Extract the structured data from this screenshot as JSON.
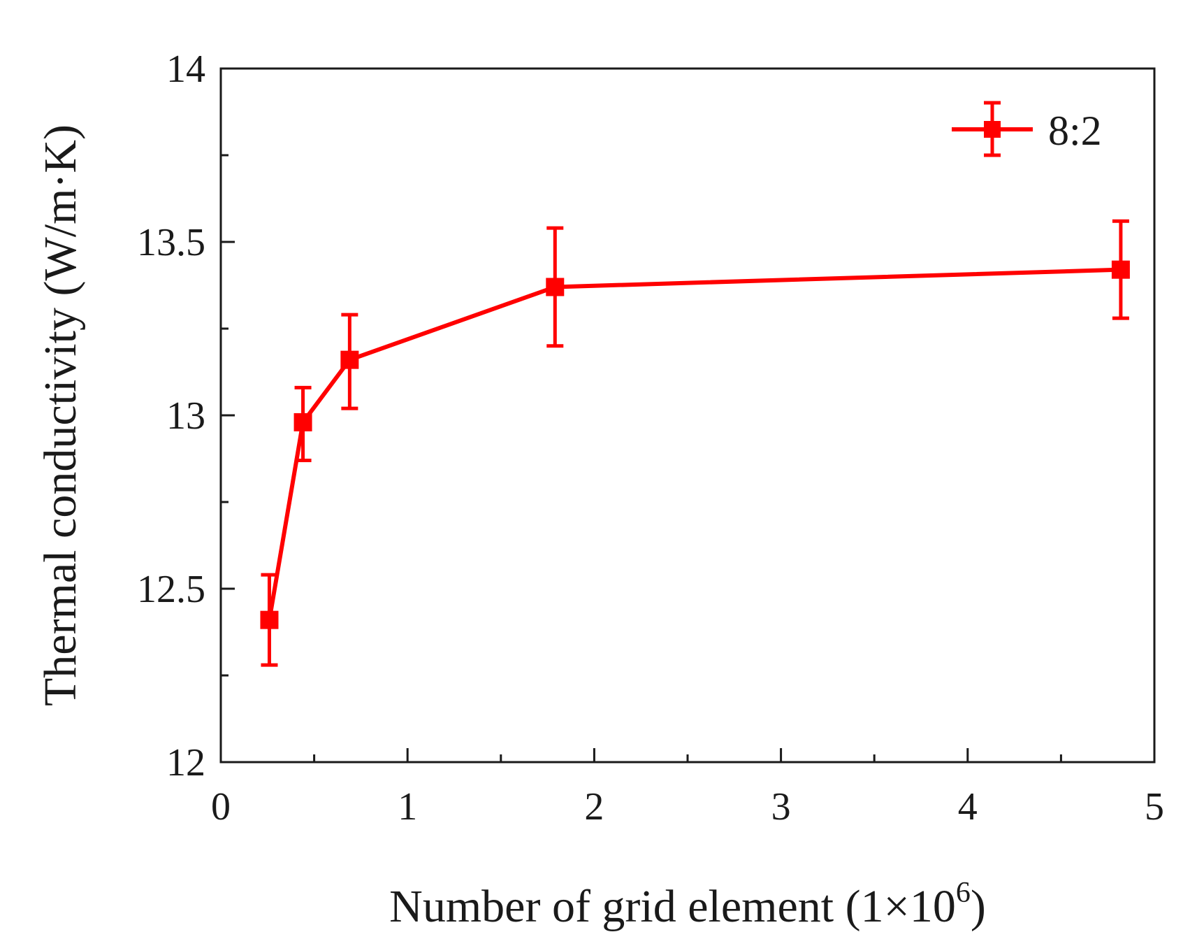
{
  "chart_data": {
    "type": "line",
    "xlabel": "Number of grid element (1×10",
    "xlabel_sup": "6",
    "xlabel_close": ")",
    "ylabel": "Thermal conductivity (W/m·K)",
    "xlim": [
      0,
      5
    ],
    "ylim": [
      12,
      14
    ],
    "xticks": [
      "0",
      "1",
      "2",
      "3",
      "4",
      "5"
    ],
    "xtick_values": [
      0,
      1,
      2,
      3,
      4,
      5
    ],
    "xminor": [
      0.5,
      1.5,
      2.5,
      3.5,
      4.5
    ],
    "yticks": [
      "12",
      "12.5",
      "13",
      "13.5",
      "14"
    ],
    "ytick_values": [
      12,
      12.5,
      13,
      13.5,
      14
    ],
    "yminor": [
      12.25,
      12.75,
      13.25,
      13.75
    ],
    "grid": false,
    "legend_position": "top-right",
    "series": [
      {
        "name": "8:2",
        "color": "#ff0000",
        "marker": "square",
        "x": [
          0.26,
          0.44,
          0.69,
          1.79,
          4.82
        ],
        "y": [
          12.41,
          12.98,
          13.16,
          13.37,
          13.42
        ],
        "err_low": [
          12.28,
          12.87,
          13.02,
          13.2,
          13.28
        ],
        "err_high": [
          12.54,
          13.08,
          13.29,
          13.54,
          13.56
        ]
      }
    ]
  }
}
